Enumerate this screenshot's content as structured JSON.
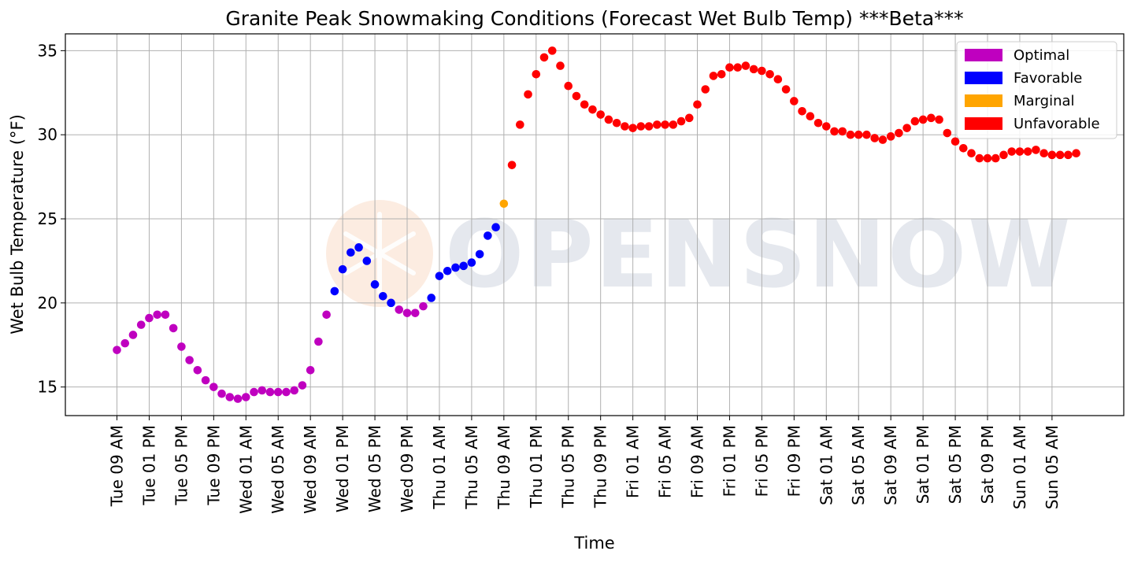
{
  "watermark": {
    "text": "OPENSNOW",
    "icon": "snowflake-logo",
    "icon_color": "#f6c9a8"
  },
  "chart_data": {
    "type": "scatter",
    "title": "Granite Peak Snowmaking Conditions (Forecast Wet Bulb Temp) ***Beta***",
    "xlabel": "Time",
    "ylabel": "Wet Bulb Temperature (°F)",
    "ylim": [
      13.3,
      36
    ],
    "yticks": [
      15,
      20,
      25,
      30,
      35
    ],
    "grid": true,
    "legend_position": "top-right",
    "x_unit": "hours from Tue 09 AM",
    "xlim": [
      -6.4,
      124.9
    ],
    "xticks": [
      {
        "hour": 0,
        "label": "Tue 09 AM"
      },
      {
        "hour": 4,
        "label": "Tue 01 PM"
      },
      {
        "hour": 8,
        "label": "Tue 05 PM"
      },
      {
        "hour": 12,
        "label": "Tue 09 PM"
      },
      {
        "hour": 16,
        "label": "Wed 01 AM"
      },
      {
        "hour": 20,
        "label": "Wed 05 AM"
      },
      {
        "hour": 24,
        "label": "Wed 09 AM"
      },
      {
        "hour": 28,
        "label": "Wed 01 PM"
      },
      {
        "hour": 32,
        "label": "Wed 05 PM"
      },
      {
        "hour": 36,
        "label": "Wed 09 PM"
      },
      {
        "hour": 40,
        "label": "Thu 01 AM"
      },
      {
        "hour": 44,
        "label": "Thu 05 AM"
      },
      {
        "hour": 48,
        "label": "Thu 09 AM"
      },
      {
        "hour": 52,
        "label": "Thu 01 PM"
      },
      {
        "hour": 56,
        "label": "Thu 05 PM"
      },
      {
        "hour": 60,
        "label": "Thu 09 PM"
      },
      {
        "hour": 64,
        "label": "Fri 01 AM"
      },
      {
        "hour": 68,
        "label": "Fri 05 AM"
      },
      {
        "hour": 72,
        "label": "Fri 09 AM"
      },
      {
        "hour": 76,
        "label": "Fri 01 PM"
      },
      {
        "hour": 80,
        "label": "Fri 05 PM"
      },
      {
        "hour": 84,
        "label": "Fri 09 PM"
      },
      {
        "hour": 88,
        "label": "Sat 01 AM"
      },
      {
        "hour": 92,
        "label": "Sat 05 AM"
      },
      {
        "hour": 96,
        "label": "Sat 09 AM"
      },
      {
        "hour": 100,
        "label": "Sat 01 PM"
      },
      {
        "hour": 104,
        "label": "Sat 05 PM"
      },
      {
        "hour": 108,
        "label": "Sat 09 PM"
      },
      {
        "hour": 112,
        "label": "Sun 01 AM"
      },
      {
        "hour": 116,
        "label": "Sun 05 AM"
      }
    ],
    "categories": [
      {
        "name": "Optimal",
        "color": "#bf00bf"
      },
      {
        "name": "Favorable",
        "color": "#0000ff"
      },
      {
        "name": "Marginal",
        "color": "#ffa500"
      },
      {
        "name": "Unfavorable",
        "color": "#ff0000"
      }
    ],
    "series": [
      {
        "name": "Optimal",
        "color": "#bf00bf",
        "points": [
          [
            0,
            17.2
          ],
          [
            1,
            17.6
          ],
          [
            2,
            18.1
          ],
          [
            3,
            18.7
          ],
          [
            4,
            19.1
          ],
          [
            5,
            19.3
          ],
          [
            6,
            19.3
          ],
          [
            7,
            18.5
          ],
          [
            8,
            17.4
          ],
          [
            9,
            16.6
          ],
          [
            10,
            16.0
          ],
          [
            11,
            15.4
          ],
          [
            12,
            15.0
          ],
          [
            13,
            14.6
          ],
          [
            14,
            14.4
          ],
          [
            15,
            14.3
          ],
          [
            16,
            14.4
          ],
          [
            17,
            14.7
          ],
          [
            18,
            14.8
          ],
          [
            19,
            14.7
          ],
          [
            20,
            14.7
          ],
          [
            21,
            14.7
          ],
          [
            22,
            14.8
          ],
          [
            23,
            15.1
          ],
          [
            24,
            16.0
          ],
          [
            25,
            17.7
          ],
          [
            26,
            19.3
          ],
          [
            35,
            19.6
          ],
          [
            36,
            19.4
          ],
          [
            37,
            19.4
          ],
          [
            38,
            19.8
          ]
        ]
      },
      {
        "name": "Favorable",
        "color": "#0000ff",
        "points": [
          [
            27,
            20.7
          ],
          [
            28,
            22.0
          ],
          [
            29,
            23.0
          ],
          [
            30,
            23.3
          ],
          [
            31,
            22.5
          ],
          [
            32,
            21.1
          ],
          [
            33,
            20.4
          ],
          [
            34,
            20.0
          ],
          [
            39,
            20.3
          ],
          [
            40,
            21.6
          ],
          [
            41,
            21.9
          ],
          [
            42,
            22.1
          ],
          [
            43,
            22.2
          ],
          [
            44,
            22.4
          ],
          [
            45,
            22.9
          ],
          [
            46,
            24.0
          ],
          [
            47,
            24.5
          ]
        ]
      },
      {
        "name": "Marginal",
        "color": "#ffa500",
        "points": [
          [
            48,
            25.9
          ]
        ]
      },
      {
        "name": "Unfavorable",
        "color": "#ff0000",
        "points": [
          [
            49,
            28.2
          ],
          [
            50,
            30.6
          ],
          [
            51,
            32.4
          ],
          [
            52,
            33.6
          ],
          [
            53,
            34.6
          ],
          [
            54,
            35.0
          ],
          [
            55,
            34.1
          ],
          [
            56,
            32.9
          ],
          [
            57,
            32.3
          ],
          [
            58,
            31.8
          ],
          [
            59,
            31.5
          ],
          [
            60,
            31.2
          ],
          [
            61,
            30.9
          ],
          [
            62,
            30.7
          ],
          [
            63,
            30.5
          ],
          [
            64,
            30.4
          ],
          [
            65,
            30.5
          ],
          [
            66,
            30.5
          ],
          [
            67,
            30.6
          ],
          [
            68,
            30.6
          ],
          [
            69,
            30.6
          ],
          [
            70,
            30.8
          ],
          [
            71,
            31.0
          ],
          [
            72,
            31.8
          ],
          [
            73,
            32.7
          ],
          [
            74,
            33.5
          ],
          [
            75,
            33.6
          ],
          [
            76,
            34.0
          ],
          [
            77,
            34.0
          ],
          [
            78,
            34.1
          ],
          [
            79,
            33.9
          ],
          [
            80,
            33.8
          ],
          [
            81,
            33.6
          ],
          [
            82,
            33.3
          ],
          [
            83,
            32.7
          ],
          [
            84,
            32.0
          ],
          [
            85,
            31.4
          ],
          [
            86,
            31.1
          ],
          [
            87,
            30.7
          ],
          [
            88,
            30.5
          ],
          [
            89,
            30.2
          ],
          [
            90,
            30.2
          ],
          [
            91,
            30.0
          ],
          [
            92,
            30.0
          ],
          [
            93,
            30.0
          ],
          [
            94,
            29.8
          ],
          [
            95,
            29.7
          ],
          [
            96,
            29.9
          ],
          [
            97,
            30.1
          ],
          [
            98,
            30.4
          ],
          [
            99,
            30.8
          ],
          [
            100,
            30.9
          ],
          [
            101,
            31.0
          ],
          [
            102,
            30.9
          ],
          [
            103,
            30.1
          ],
          [
            104,
            29.6
          ],
          [
            105,
            29.2
          ],
          [
            106,
            28.9
          ],
          [
            107,
            28.6
          ],
          [
            108,
            28.6
          ],
          [
            109,
            28.6
          ],
          [
            110,
            28.8
          ],
          [
            111,
            29.0
          ],
          [
            112,
            29.0
          ],
          [
            113,
            29.0
          ],
          [
            114,
            29.1
          ],
          [
            115,
            28.9
          ],
          [
            116,
            28.8
          ],
          [
            117,
            28.8
          ],
          [
            118,
            28.8
          ],
          [
            119,
            28.9
          ]
        ]
      }
    ]
  }
}
